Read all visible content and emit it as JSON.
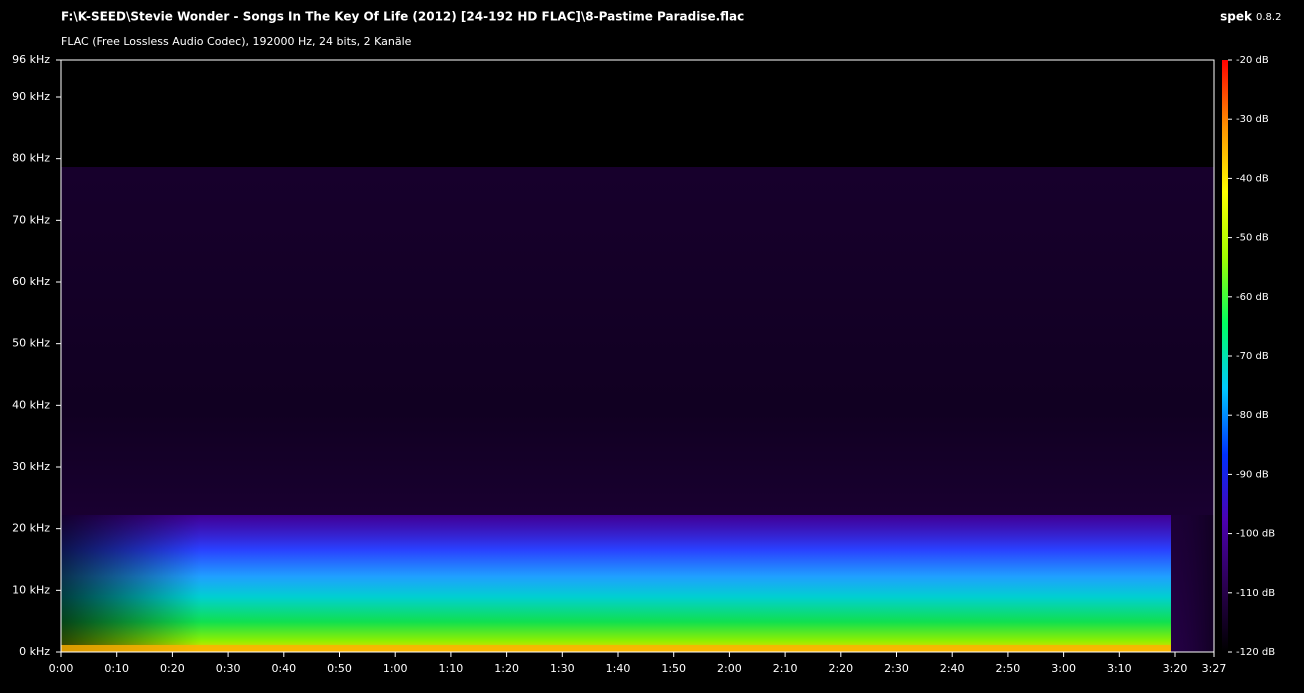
{
  "app": {
    "name": "spek",
    "version": "0.8.2"
  },
  "chart_data": {
    "type": "spectrogram",
    "title": "F:\\K-SEED\\Stevie Wonder - Songs In The Key Of Life (2012) [24-192 HD FLAC]\\8-Pastime Paradise.flac",
    "subtitle": "FLAC (Free Lossless Audio Codec), 192000 Hz, 24 bits, 2 Kanäle",
    "xlim": [
      0,
      207
    ],
    "xticks": [
      {
        "value": 0,
        "label": "0:00"
      },
      {
        "value": 10,
        "label": "0:10"
      },
      {
        "value": 20,
        "label": "0:20"
      },
      {
        "value": 30,
        "label": "0:30"
      },
      {
        "value": 40,
        "label": "0:40"
      },
      {
        "value": 50,
        "label": "0:50"
      },
      {
        "value": 60,
        "label": "1:00"
      },
      {
        "value": 70,
        "label": "1:10"
      },
      {
        "value": 80,
        "label": "1:20"
      },
      {
        "value": 90,
        "label": "1:30"
      },
      {
        "value": 100,
        "label": "1:40"
      },
      {
        "value": 110,
        "label": "1:50"
      },
      {
        "value": 120,
        "label": "2:00"
      },
      {
        "value": 130,
        "label": "2:10"
      },
      {
        "value": 140,
        "label": "2:20"
      },
      {
        "value": 150,
        "label": "2:30"
      },
      {
        "value": 160,
        "label": "2:40"
      },
      {
        "value": 170,
        "label": "2:50"
      },
      {
        "value": 180,
        "label": "3:00"
      },
      {
        "value": 190,
        "label": "3:10"
      },
      {
        "value": 200,
        "label": "3:20"
      },
      {
        "value": 207,
        "label": "3:27"
      }
    ],
    "ylim": [
      0,
      96
    ],
    "yticks": [
      {
        "value": 0,
        "label": "0 kHz"
      },
      {
        "value": 10,
        "label": "10 kHz"
      },
      {
        "value": 20,
        "label": "20 kHz"
      },
      {
        "value": 30,
        "label": "30 kHz"
      },
      {
        "value": 40,
        "label": "40 kHz"
      },
      {
        "value": 50,
        "label": "50 kHz"
      },
      {
        "value": 60,
        "label": "60 kHz"
      },
      {
        "value": 70,
        "label": "70 kHz"
      },
      {
        "value": 80,
        "label": "80 kHz"
      },
      {
        "value": 90,
        "label": "90 kHz"
      },
      {
        "value": 96,
        "label": "96 kHz"
      }
    ],
    "colorbar": {
      "lim": [
        -120,
        -20
      ],
      "ticks": [
        {
          "value": -20,
          "label": "-20 dB"
        },
        {
          "value": -30,
          "label": "-30 dB"
        },
        {
          "value": -40,
          "label": "-40 dB"
        },
        {
          "value": -50,
          "label": "-50 dB"
        },
        {
          "value": -60,
          "label": "-60 dB"
        },
        {
          "value": -70,
          "label": "-70 dB"
        },
        {
          "value": -80,
          "label": "-80 dB"
        },
        {
          "value": -90,
          "label": "-90 dB"
        },
        {
          "value": -100,
          "label": "-100 dB"
        },
        {
          "value": -110,
          "label": "-110 dB"
        },
        {
          "value": -120,
          "label": "-120 dB"
        }
      ],
      "colors": [
        "#000000",
        "#2a0050",
        "#4b00b0",
        "#0030ff",
        "#00c8ff",
        "#00ff60",
        "#a0ff00",
        "#ffff00",
        "#ff9000",
        "#ff0000"
      ]
    }
  }
}
